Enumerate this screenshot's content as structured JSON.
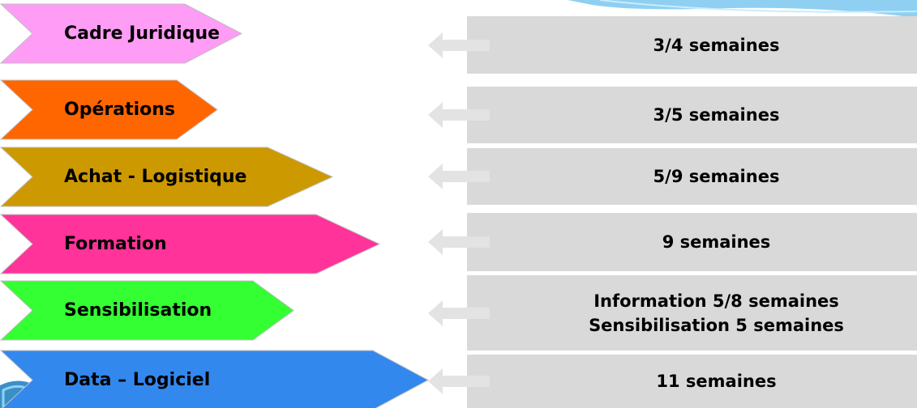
{
  "rows": [
    {
      "label": "Cadre Juridique",
      "color": "#ff9cf5",
      "duration_lines": [
        "3/4 semaines"
      ]
    },
    {
      "label": "Opérations",
      "color": "#ff6600",
      "duration_lines": [
        "3/5 semaines"
      ]
    },
    {
      "label": "Achat - Logistique",
      "color": "#cc9900",
      "duration_lines": [
        "5/9 semaines"
      ]
    },
    {
      "label": "Formation",
      "color": "#ff3399",
      "duration_lines": [
        "9 semaines"
      ]
    },
    {
      "label": "Sensibilisation",
      "color": "#33ff33",
      "duration_lines": [
        "Information 5/8 semaines",
        "Sensibilisation 5 semaines"
      ]
    },
    {
      "label": "Data – Logiciel",
      "color": "#3388ee",
      "duration_lines": [
        "11 semaines"
      ]
    }
  ],
  "colors": {
    "duration_box": "#d9d9d9",
    "arrow": "#e3e3e3",
    "deco_wave": "#7ec8ef"
  },
  "icons": {
    "arrow": "left-arrow-icon"
  }
}
